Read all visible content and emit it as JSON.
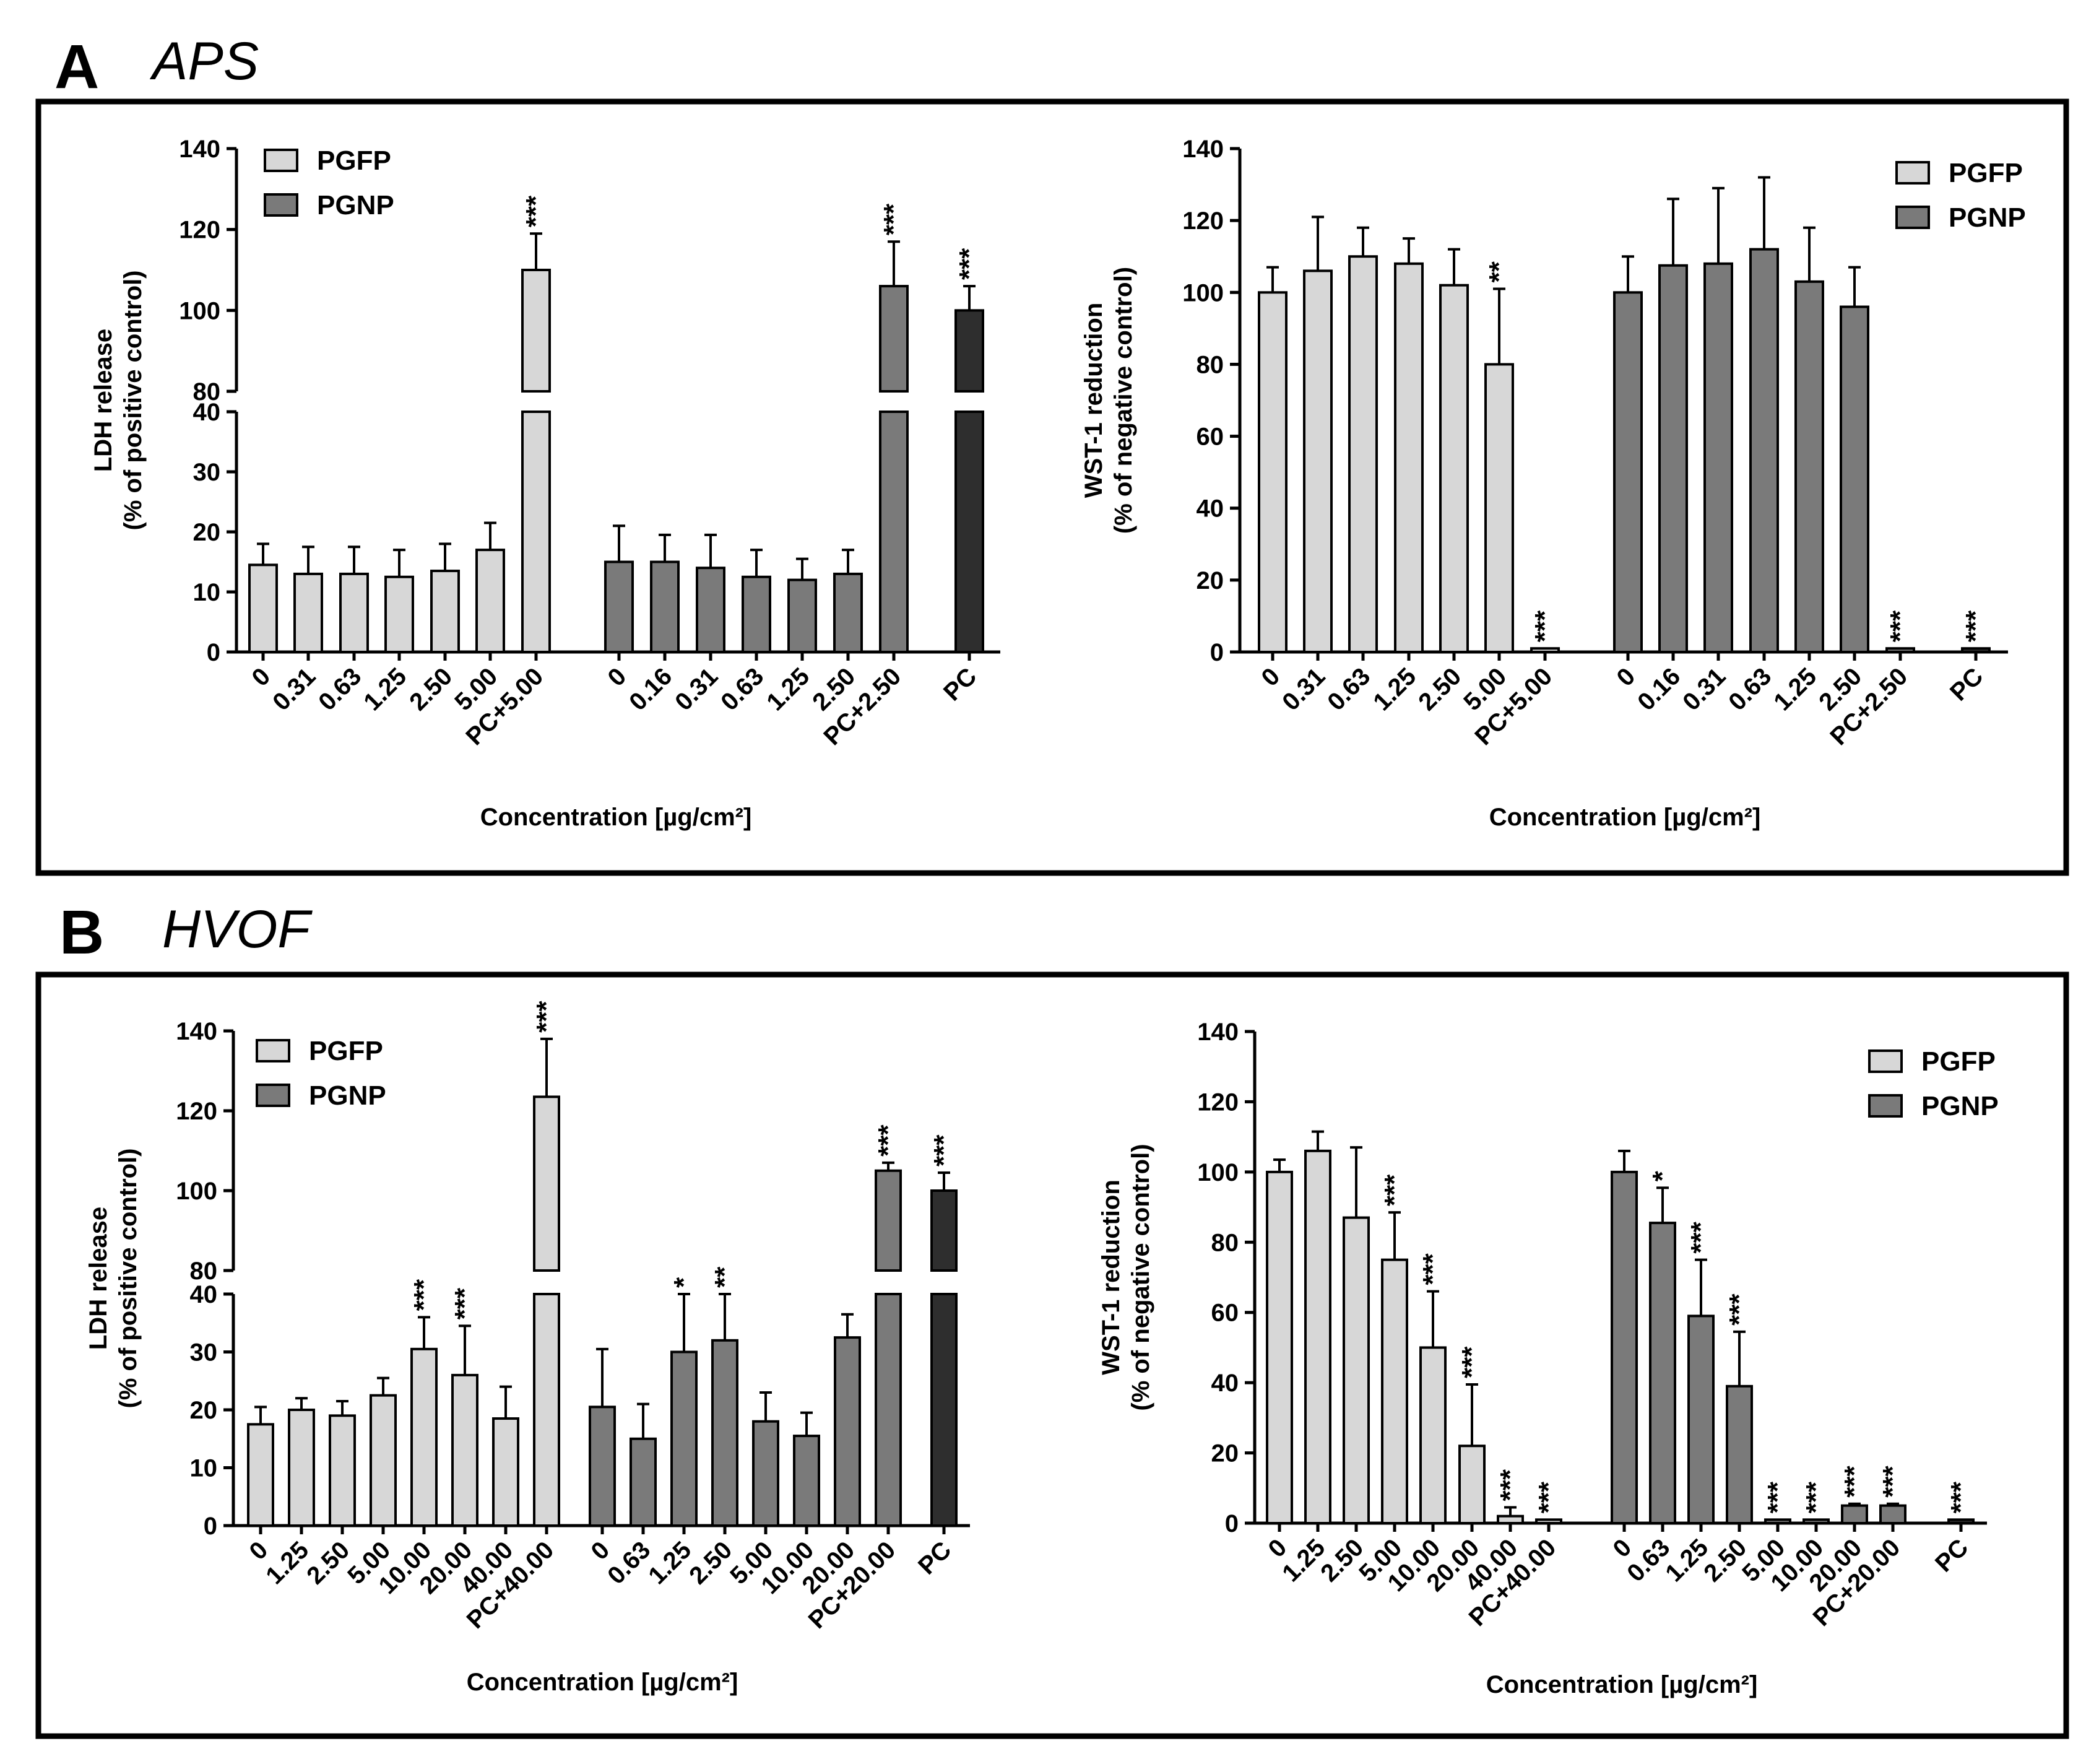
{
  "panels": [
    {
      "letter": "A",
      "subtitle": "APS"
    },
    {
      "letter": "B",
      "subtitle": "HVOF"
    }
  ],
  "colors": {
    "pgfp": "#d7d7d7",
    "pgnp": "#7a7a7a",
    "pc": "#2e2e2e",
    "stroke": "#000000"
  },
  "chart_data": [
    {
      "id": "A-LDH",
      "type": "bar",
      "title": "",
      "ylabel": [
        "LDH release",
        "(% of positive control)"
      ],
      "xlabel": "Concentration [µg/cm²]",
      "ylim_lower": [
        0,
        40
      ],
      "ylim_upper": [
        80,
        140
      ],
      "yticks_lower": [
        "0",
        "10",
        "20",
        "30",
        "40"
      ],
      "yticks_upper": [
        "80",
        "100",
        "120",
        "140"
      ],
      "legend": [
        "PGFP",
        "PGNP"
      ],
      "legend_position": "top-left",
      "groups": [
        {
          "series": "PGFP",
          "categories": [
            "0",
            "0.31",
            "0.63",
            "1.25",
            "2.50",
            "5.00",
            "PC+5.00"
          ],
          "values": [
            14.5,
            13,
            13,
            12.5,
            13.5,
            17,
            110
          ],
          "errors": [
            3.5,
            4.5,
            4.5,
            4.5,
            4.5,
            4.5,
            9
          ],
          "sig": [
            "",
            "",
            "",
            "",
            "",
            "",
            "***"
          ]
        },
        {
          "series": "PGNP",
          "categories": [
            "0",
            "0.16",
            "0.31",
            "0.63",
            "1.25",
            "2.50",
            "PC+2.50"
          ],
          "values": [
            15,
            15,
            14,
            12.5,
            12,
            13,
            106
          ],
          "errors": [
            6,
            4.5,
            5.5,
            4.5,
            3.5,
            4,
            11
          ],
          "sig": [
            "",
            "",
            "",
            "",
            "",
            "",
            "***"
          ]
        },
        {
          "series": "PC",
          "categories": [
            "PC"
          ],
          "values": [
            100
          ],
          "errors": [
            6
          ],
          "sig": [
            "***"
          ]
        }
      ]
    },
    {
      "id": "A-WST",
      "type": "bar",
      "ylabel": [
        "WST-1 reduction",
        "(% of negative control)"
      ],
      "xlabel": "Concentration [µg/cm²]",
      "ylim": [
        0,
        140
      ],
      "yticks": [
        "0",
        "20",
        "40",
        "60",
        "80",
        "100",
        "120",
        "140"
      ],
      "legend": [
        "PGFP",
        "PGNP"
      ],
      "legend_position": "top-right",
      "groups": [
        {
          "series": "PGFP",
          "categories": [
            "0",
            "0.31",
            "0.63",
            "1.25",
            "2.50",
            "5.00",
            "PC+5.00"
          ],
          "values": [
            100,
            106,
            110,
            108,
            102,
            80,
            1
          ],
          "errors": [
            7,
            15,
            8,
            7,
            10,
            21,
            0
          ],
          "sig": [
            "",
            "",
            "",
            "",
            "",
            "**",
            "***"
          ]
        },
        {
          "series": "PGNP",
          "categories": [
            "0",
            "0.16",
            "0.31",
            "0.63",
            "1.25",
            "2.50",
            "PC+2.50"
          ],
          "values": [
            100,
            107.5,
            108,
            112,
            103,
            96,
            1
          ],
          "errors": [
            10,
            18.5,
            21,
            20,
            15,
            11,
            0
          ],
          "sig": [
            "",
            "",
            "",
            "",
            "",
            "",
            "***"
          ]
        },
        {
          "series": "PC",
          "categories": [
            "PC"
          ],
          "values": [
            1
          ],
          "errors": [
            0
          ],
          "sig": [
            "***"
          ]
        }
      ]
    },
    {
      "id": "B-LDH",
      "type": "bar",
      "ylabel": [
        "LDH release",
        "(% of positive control)"
      ],
      "xlabel": "Concentration [µg/cm²]",
      "ylim_lower": [
        0,
        40
      ],
      "ylim_upper": [
        80,
        140
      ],
      "yticks_lower": [
        "0",
        "10",
        "20",
        "30",
        "40"
      ],
      "yticks_upper": [
        "80",
        "100",
        "120",
        "140"
      ],
      "legend": [
        "PGFP",
        "PGNP"
      ],
      "legend_position": "top-left",
      "groups": [
        {
          "series": "PGFP",
          "categories": [
            "0",
            "1.25",
            "2.50",
            "5.00",
            "10.00",
            "20.00",
            "40.00",
            "PC+40.00"
          ],
          "values": [
            17.5,
            20,
            19,
            22.5,
            30.5,
            26,
            18.5,
            123.5
          ],
          "errors": [
            3,
            2,
            2.5,
            3,
            5.5,
            8.5,
            5.5,
            14.5
          ],
          "sig": [
            "",
            "",
            "",
            "",
            "***",
            "***",
            "",
            "***"
          ]
        },
        {
          "series": "PGNP",
          "categories": [
            "0",
            "0.63",
            "1.25",
            "2.50",
            "5.00",
            "10.00",
            "20.00",
            "PC+20.00"
          ],
          "values": [
            20.5,
            15,
            30,
            32,
            18,
            15.5,
            32.5,
            105
          ],
          "errors": [
            10,
            6,
            10,
            8,
            5,
            4,
            4,
            2
          ],
          "sig": [
            "",
            "",
            "*",
            "**",
            "",
            "",
            "",
            "***"
          ]
        },
        {
          "series": "PC",
          "categories": [
            "PC"
          ],
          "values": [
            100
          ],
          "errors": [
            4.5
          ],
          "sig": [
            "***"
          ]
        }
      ]
    },
    {
      "id": "B-WST",
      "type": "bar",
      "ylabel": [
        "WST-1 reduction",
        "(% of negative control)"
      ],
      "xlabel": "Concentration [µg/cm²]",
      "ylim": [
        0,
        140
      ],
      "yticks": [
        "0",
        "20",
        "40",
        "60",
        "80",
        "100",
        "120",
        "140"
      ],
      "legend": [
        "PGFP",
        "PGNP"
      ],
      "legend_position": "top-right",
      "groups": [
        {
          "series": "PGFP",
          "categories": [
            "0",
            "1.25",
            "2.50",
            "5.00",
            "10.00",
            "20.00",
            "40.00",
            "PC+40.00"
          ],
          "values": [
            100,
            106,
            87,
            75,
            50,
            22,
            2,
            1
          ],
          "errors": [
            3.5,
            5.5,
            20,
            13.5,
            16,
            17.5,
            2.5,
            0
          ],
          "sig": [
            "",
            "",
            "",
            "***",
            "***",
            "***",
            "***",
            "***"
          ]
        },
        {
          "series": "PGNP",
          "categories": [
            "0",
            "0.63",
            "1.25",
            "2.50",
            "5.00",
            "10.00",
            "20.00",
            "PC+20.00"
          ],
          "values": [
            100,
            85.5,
            59,
            39,
            1,
            1,
            5,
            5
          ],
          "errors": [
            6,
            10,
            16,
            15.5,
            0,
            0,
            0.5,
            0.5
          ],
          "sig": [
            "",
            "*",
            "***",
            "***",
            "***",
            "***",
            "***",
            "***"
          ]
        },
        {
          "series": "PC",
          "categories": [
            "PC"
          ],
          "values": [
            1
          ],
          "errors": [
            0
          ],
          "sig": [
            "***"
          ]
        }
      ]
    }
  ]
}
